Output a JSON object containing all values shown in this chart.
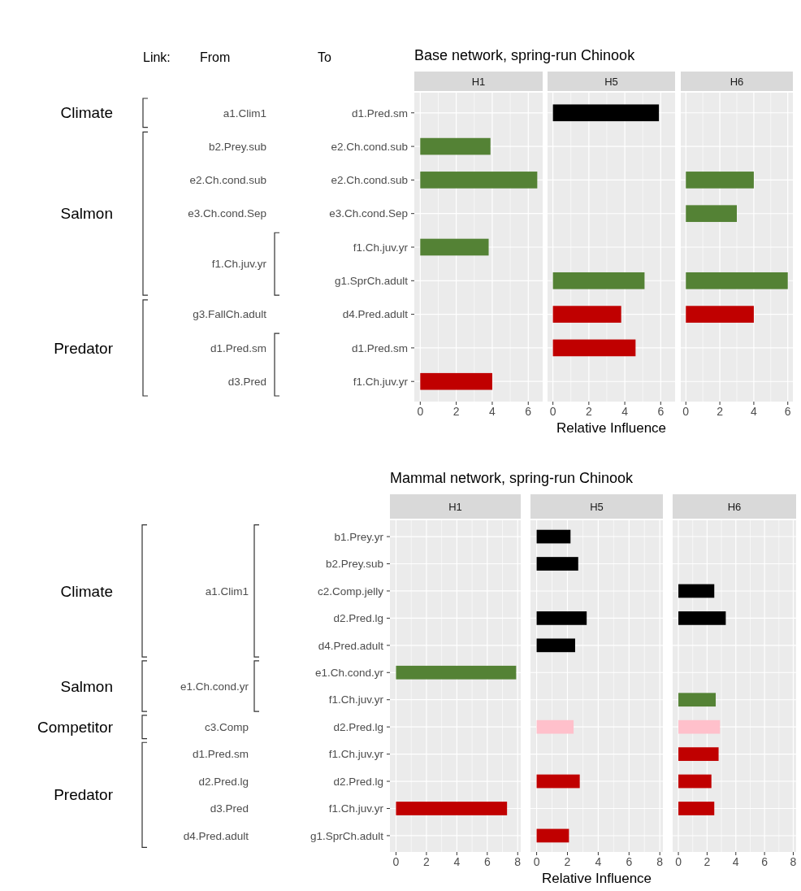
{
  "chart_data": [
    {
      "type": "bar",
      "orientation": "horizontal",
      "title": "H1",
      "categories": [
        "d1.Pred.sm",
        "e2.Ch.cond.sub",
        "e2.Ch.cond.sub",
        "e3.Ch.cond.Sep",
        "f1.Ch.juv.yr",
        "g1.SprCh.adult",
        "d4.Pred.adult",
        "d1.Pred.sm",
        "f1.Ch.juv.yr"
      ],
      "values": [
        null,
        3.9,
        6.5,
        null,
        3.8,
        null,
        null,
        null,
        4.0
      ],
      "colors": [
        null,
        "#548235",
        "#548235",
        null,
        "#548235",
        null,
        null,
        null,
        "#c00000"
      ],
      "xlim": [
        -0.33,
        6.8
      ],
      "xticks": [
        0,
        2,
        4,
        6
      ],
      "grid": true,
      "annotations": [
        "Base network, spring-run Chinook",
        "Link:",
        "From",
        "To",
        "Climate",
        "Salmon",
        "Predator",
        "a1.Clim1",
        "b2.Prey.sub",
        "e2.Ch.cond.sub",
        "e3.Ch.cond.Sep",
        "f1.Ch.juv.yr",
        "g3.FallCh.adult",
        "d1.Pred.sm",
        "d3.Pred"
      ]
    },
    {
      "type": "bar",
      "orientation": "horizontal",
      "title": "H5",
      "categories": [
        null,
        null,
        null,
        null,
        null,
        null,
        null,
        null,
        null
      ],
      "values": [
        5.9,
        null,
        null,
        null,
        null,
        5.1,
        3.8,
        4.6,
        null
      ],
      "colors": [
        "#000000",
        null,
        null,
        null,
        null,
        "#548235",
        "#c00000",
        "#c00000",
        null
      ],
      "xlim": [
        -0.3,
        6.8
      ],
      "xticks": [
        0,
        2,
        4,
        6
      ],
      "grid": true,
      "tick_labels": "x",
      "xlabel": "Relative Influence"
    },
    {
      "type": "bar",
      "orientation": "horizontal",
      "title": "H6",
      "categories": [
        null,
        null,
        null,
        null,
        null,
        null,
        null,
        null,
        null
      ],
      "values": [
        null,
        null,
        4.0,
        3.0,
        null,
        6.0,
        4.0,
        null,
        null
      ],
      "colors": [
        null,
        null,
        "#548235",
        "#548235",
        null,
        "#548235",
        "#c00000",
        null,
        null
      ],
      "xlim": [
        -0.3,
        6.3
      ],
      "xticks": [
        0,
        2,
        4,
        6
      ],
      "grid": true,
      "tick_labels": "x"
    },
    {
      "type": "bar",
      "orientation": "horizontal",
      "title": "H1",
      "categories": [
        "b1.Prey.yr",
        "b2.Prey.sub",
        "c2.Comp.jelly",
        "d2.Pred.lg",
        "d4.Pred.adult",
        "e1.Ch.cond.yr",
        "f1.Ch.juv.yr",
        "d2.Pred.lg",
        "f1.Ch.juv.yr",
        "d2.Pred.lg",
        "f1.Ch.juv.yr",
        "g1.SprCh.adult"
      ],
      "values": [
        null,
        null,
        null,
        null,
        null,
        7.9,
        null,
        null,
        null,
        null,
        7.3,
        null
      ],
      "colors": [
        null,
        null,
        null,
        null,
        null,
        "#548235",
        null,
        null,
        null,
        null,
        "#c00000",
        null
      ],
      "xlim": [
        -0.4,
        8.2
      ],
      "xticks": [
        0,
        2,
        4,
        6,
        8
      ],
      "grid": true,
      "annotations": [
        "Mammal network, spring-run Chinook",
        "Climate",
        "Salmon",
        "Competitor",
        "Predator",
        "a1.Clim1",
        "e1.Ch.cond.yr",
        "c3.Comp",
        "d1.Pred.sm",
        "d2.Pred.lg",
        "d3.Pred",
        "d4.Pred.adult"
      ]
    },
    {
      "type": "bar",
      "orientation": "horizontal",
      "title": "H5",
      "categories": [
        null,
        null,
        null,
        null,
        null,
        null,
        null,
        null,
        null,
        null,
        null,
        null
      ],
      "values": [
        2.2,
        2.7,
        null,
        3.25,
        2.5,
        null,
        null,
        2.4,
        null,
        2.8,
        null,
        2.1
      ],
      "colors": [
        "#000000",
        "#000000",
        null,
        "#000000",
        "#000000",
        null,
        null,
        "#ffc0cb",
        null,
        "#c00000",
        null,
        "#c00000"
      ],
      "xlim": [
        -0.4,
        8.2
      ],
      "xticks": [
        0,
        2,
        4,
        6,
        8
      ],
      "grid": true,
      "tick_labels": "x",
      "xlabel": "Relative Influence"
    },
    {
      "type": "bar",
      "orientation": "horizontal",
      "title": "H6",
      "categories": [
        null,
        null,
        null,
        null,
        null,
        null,
        null,
        null,
        null,
        null,
        null,
        null
      ],
      "values": [
        null,
        null,
        2.5,
        3.3,
        null,
        null,
        2.6,
        2.9,
        2.8,
        2.3,
        2.5,
        null
      ],
      "colors": [
        null,
        null,
        "#000000",
        "#000000",
        null,
        null,
        "#548235",
        "#ffc0cb",
        "#c00000",
        "#c00000",
        "#c00000",
        null
      ],
      "xlim": [
        -0.4,
        8.2
      ],
      "xticks": [
        0,
        2,
        4,
        6,
        8
      ],
      "grid": true,
      "tick_labels": "x"
    }
  ]
}
